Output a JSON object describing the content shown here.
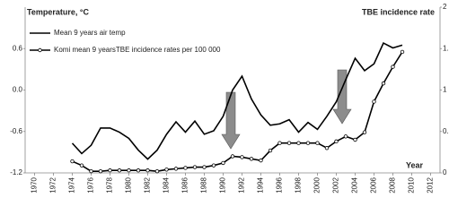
{
  "chart_data": {
    "type": "line",
    "y_title": "Temperature, °C",
    "y2_title": "TBE incidence rate",
    "x_title": "Year",
    "xlim": [
      1969,
      2013
    ],
    "xticks": [
      1970,
      1972,
      1974,
      1976,
      1978,
      1980,
      1982,
      1984,
      1986,
      1988,
      1990,
      1992,
      1994,
      1996,
      1998,
      2000,
      2002,
      2004,
      2006,
      2008,
      2010,
      2012
    ],
    "ylim": [
      -1.2,
      1.2
    ],
    "yticks": [
      -1.2,
      -0.6,
      {
        "value": 0,
        "label": "0.0"
      },
      0.6
    ],
    "y2lim": [
      0,
      2
    ],
    "y2ticks": [
      0,
      0.5,
      1,
      1.5,
      2
    ],
    "x": [
      1974,
      1975,
      1976,
      1977,
      1978,
      1979,
      1980,
      1981,
      1982,
      1983,
      1984,
      1985,
      1986,
      1987,
      1988,
      1989,
      1990,
      1991,
      1992,
      1993,
      1994,
      1995,
      1996,
      1997,
      1998,
      1999,
      2000,
      2001,
      2002,
      2003,
      2004,
      2005,
      2006,
      2007,
      2008,
      2009
    ],
    "series": [
      {
        "name": "Mean 9 years air temp",
        "color": "#000000",
        "values": [
          -0.77,
          -0.92,
          -0.8,
          -0.55,
          -0.55,
          -0.61,
          -0.7,
          -0.87,
          -1.0,
          -0.87,
          -0.64,
          -0.46,
          -0.61,
          -0.45,
          -0.64,
          -0.59,
          -0.38,
          0.0,
          0.2,
          -0.13,
          -0.36,
          -0.51,
          -0.49,
          -0.43,
          -0.61,
          -0.47,
          -0.57,
          -0.38,
          -0.17,
          0.15,
          0.46,
          0.28,
          0.38,
          0.68,
          0.61,
          0.65
        ]
      },
      {
        "name": "Komi mean 9 yearsTBE incidence rates per 100 000",
        "color": "#000000",
        "axis": "y2",
        "marker": "circle",
        "values": [
          0.14,
          0.09,
          0.02,
          0.02,
          0.03,
          0.03,
          0.03,
          0.03,
          0.03,
          0.02,
          0.04,
          0.05,
          0.06,
          0.07,
          0.07,
          0.09,
          0.12,
          0.2,
          0.19,
          0.17,
          0.15,
          0.27,
          0.36,
          0.36,
          0.36,
          0.36,
          0.36,
          0.3,
          0.38,
          0.44,
          0.4,
          0.49,
          0.86,
          1.08,
          1.28,
          1.46
        ]
      }
    ]
  }
}
